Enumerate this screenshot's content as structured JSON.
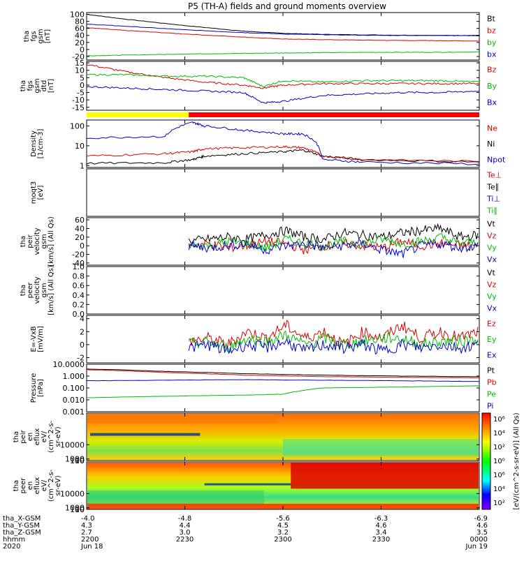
{
  "title": "P5 (TH-A) fields and ground moments overview",
  "chart_data": [
    {
      "type": "line",
      "panel": "fgs_gsm",
      "ylabel_lines": [
        "tha",
        "fgs",
        "gsm",
        "[nT]"
      ],
      "yticks": [
        "100",
        "80",
        "60",
        "40",
        "20",
        "0",
        "-20"
      ],
      "ylim": [
        -30,
        105
      ],
      "legend": [
        {
          "label": "Bt",
          "color": "#000000"
        },
        {
          "label": "bz",
          "color": "#dd0000"
        },
        {
          "label": "by",
          "color": "#00bb00"
        },
        {
          "label": "bx",
          "color": "#0000cc"
        }
      ],
      "series": [
        {
          "name": "Bt",
          "color": "#000000",
          "x": [
            0,
            0.1,
            0.25,
            0.4,
            0.5,
            0.6,
            0.75,
            0.9,
            1.0
          ],
          "values": [
            100,
            86,
            68,
            52,
            46,
            43,
            41,
            40,
            40
          ]
        },
        {
          "name": "bz",
          "color": "#dd0000",
          "x": [
            0,
            0.1,
            0.25,
            0.4,
            0.5,
            0.6,
            0.75,
            0.9,
            1.0
          ],
          "values": [
            62,
            54,
            44,
            35,
            30,
            28,
            26,
            25,
            24
          ]
        },
        {
          "name": "by",
          "color": "#00bb00",
          "x": [
            0,
            0.1,
            0.25,
            0.4,
            0.5,
            0.6,
            0.75,
            0.9,
            1.0
          ],
          "values": [
            -18,
            -16,
            -13,
            -11,
            -10,
            -9,
            -8,
            -8,
            -7
          ]
        },
        {
          "name": "bx",
          "color": "#0000cc",
          "x": [
            0,
            0.1,
            0.25,
            0.4,
            0.5,
            0.6,
            0.75,
            0.9,
            1.0
          ],
          "values": [
            72,
            66,
            56,
            48,
            44,
            42,
            40,
            40,
            39
          ]
        }
      ]
    },
    {
      "type": "line",
      "panel": "fgs_gsm_detrended",
      "ylabel_lines": [
        "tha",
        "fgs",
        "gsm",
        "dtd",
        "[nT]"
      ],
      "yticks": [
        "15",
        "10",
        "5",
        "0",
        "-5",
        "-10",
        "-15"
      ],
      "ylim": [
        -17,
        16
      ],
      "legend": [
        {
          "label": "Bz",
          "color": "#dd0000"
        },
        {
          "label": "By",
          "color": "#00bb00"
        },
        {
          "label": "Bx",
          "color": "#0000cc"
        }
      ],
      "series": [
        {
          "name": "Bz",
          "color": "#dd0000",
          "x": [
            0,
            0.1,
            0.2,
            0.3,
            0.4,
            0.45,
            0.5,
            0.6,
            0.7,
            0.8,
            0.9,
            1.0
          ],
          "values": [
            14,
            9,
            5,
            2,
            0,
            -2,
            0,
            1,
            1,
            1,
            1,
            1
          ]
        },
        {
          "name": "By",
          "color": "#00bb00",
          "x": [
            0,
            0.1,
            0.2,
            0.3,
            0.4,
            0.45,
            0.5,
            0.6,
            0.7,
            0.8,
            0.9,
            1.0
          ],
          "values": [
            7,
            7,
            6,
            6,
            5,
            -1,
            3,
            2,
            3,
            3,
            3,
            2
          ]
        },
        {
          "name": "Bx",
          "color": "#0000cc",
          "x": [
            0,
            0.1,
            0.2,
            0.3,
            0.4,
            0.45,
            0.5,
            0.6,
            0.7,
            0.8,
            0.9,
            1.0
          ],
          "values": [
            -1,
            -2,
            -3,
            -4,
            -5,
            -12,
            -11,
            -7,
            -6,
            -5,
            -5,
            -4
          ]
        }
      ]
    },
    {
      "type": "line",
      "panel": "density",
      "ylabel_lines": [
        "Density",
        "[1/cm-3]"
      ],
      "yscale": "log",
      "yticks": [
        "100",
        "10",
        "1"
      ],
      "ylim": [
        0.8,
        200
      ],
      "legend": [
        {
          "label": "Ne",
          "color": "#dd0000"
        },
        {
          "label": "Ni",
          "color": "#000000"
        },
        {
          "label": "Npot",
          "color": "#0000cc"
        }
      ],
      "series": [
        {
          "name": "Ni",
          "color": "#000000",
          "x": [
            0,
            0.2,
            0.27,
            0.3,
            0.4,
            0.5,
            0.55,
            0.6,
            0.7,
            1.0
          ],
          "values": [
            1.3,
            1.4,
            2,
            3,
            4,
            5,
            6,
            3,
            2,
            1.5
          ]
        },
        {
          "name": "Ne",
          "color": "#dd0000",
          "x": [
            0,
            0.2,
            0.27,
            0.3,
            0.4,
            0.5,
            0.55,
            0.6,
            0.7,
            1.0
          ],
          "values": [
            3,
            4,
            5,
            7,
            8,
            9,
            8,
            3,
            2,
            1.6
          ]
        },
        {
          "name": "Npot",
          "color": "#0000cc",
          "x": [
            0,
            0.2,
            0.27,
            0.3,
            0.4,
            0.5,
            0.55,
            0.6,
            0.7,
            1.0
          ],
          "values": [
            25,
            30,
            150,
            100,
            60,
            40,
            40,
            2,
            1.5,
            1.2
          ]
        }
      ]
    },
    {
      "type": "line",
      "panel": "temperature",
      "ylabel_lines": [
        "moqt3",
        "[eV]"
      ],
      "yscale": "log",
      "legend": [
        {
          "label": "Te⊥",
          "color": "#dd0000"
        },
        {
          "label": "Te∥",
          "color": "#000000"
        },
        {
          "label": "Ti⊥",
          "color": "#0000cc"
        },
        {
          "label": "Ti∥",
          "color": "#00bb00"
        }
      ]
    },
    {
      "type": "line",
      "panel": "peir_velocity",
      "ylabel_lines": [
        "tha",
        "peir",
        "velocity",
        "gsm",
        "[km/s] (All Qs)"
      ],
      "yticks": [
        "60",
        "40",
        "20",
        "0",
        "-20",
        "-40"
      ],
      "ylim": [
        -45,
        65
      ],
      "legend": [
        {
          "label": "Vt",
          "color": "#000000"
        },
        {
          "label": "Vz",
          "color": "#dd0000"
        },
        {
          "label": "Vy",
          "color": "#00bb00"
        },
        {
          "label": "Vx",
          "color": "#0000cc"
        }
      ],
      "series": [
        {
          "name": "Vt",
          "color": "#000000",
          "x_start": 0.26,
          "values": [
            10,
            15,
            20,
            15,
            25,
            35,
            20,
            15,
            30,
            25,
            20,
            30,
            35,
            40,
            20,
            25
          ]
        },
        {
          "name": "Vz",
          "color": "#dd0000",
          "x_start": 0.26,
          "values": [
            0,
            5,
            -5,
            0,
            10,
            5,
            -10,
            0,
            5,
            0,
            -5,
            10,
            0,
            5,
            0,
            0
          ]
        },
        {
          "name": "Vy",
          "color": "#00bb00",
          "x_start": 0.26,
          "values": [
            5,
            0,
            10,
            5,
            -5,
            15,
            5,
            0,
            10,
            5,
            15,
            5,
            10,
            20,
            5,
            10
          ]
        },
        {
          "name": "Vx",
          "color": "#0000cc",
          "x_start": 0.26,
          "values": [
            0,
            -5,
            0,
            5,
            -10,
            0,
            5,
            -5,
            0,
            5,
            -10,
            -20,
            0,
            5,
            -5,
            0
          ]
        }
      ]
    },
    {
      "type": "line",
      "panel": "peer_velocity",
      "ylabel_lines": [
        "tha",
        "peer",
        "velocity",
        "gsm",
        "[km/s] (All Qs)"
      ],
      "yticks": [
        "1.0",
        "0.8",
        "0.6",
        "0.4",
        "0.2",
        "0.0"
      ],
      "ylim": [
        0,
        1
      ],
      "legend": [
        {
          "label": "Vt",
          "color": "#000000"
        },
        {
          "label": "Vz",
          "color": "#dd0000"
        },
        {
          "label": "Vy",
          "color": "#00bb00"
        },
        {
          "label": "Vx",
          "color": "#0000cc"
        }
      ]
    },
    {
      "type": "line",
      "panel": "efield",
      "ylabel_lines": [
        "E=-VxB",
        "[mV/m]"
      ],
      "yticks": [
        "4",
        "2",
        "0",
        "-2"
      ],
      "ylim": [
        -2.8,
        4.5
      ],
      "legend": [
        {
          "label": "Ez",
          "color": "#dd0000"
        },
        {
          "label": "Ey",
          "color": "#00bb00"
        },
        {
          "label": "Ex",
          "color": "#0000cc"
        }
      ],
      "series": [
        {
          "name": "Ez",
          "color": "#dd0000",
          "x_start": 0.26,
          "values": [
            0.5,
            1,
            0,
            2,
            1,
            3,
            1,
            2,
            0,
            2,
            1,
            3,
            1,
            2,
            1,
            2
          ]
        },
        {
          "name": "Ey",
          "color": "#00bb00",
          "x_start": 0.26,
          "values": [
            0,
            0.5,
            -0.5,
            1,
            0.5,
            1.5,
            0,
            1,
            0,
            0.5,
            1,
            1,
            0,
            0.5,
            0.5,
            1
          ]
        },
        {
          "name": "Ex",
          "color": "#0000cc",
          "x_start": 0.26,
          "values": [
            -0.5,
            0,
            -1,
            0,
            -0.5,
            0.5,
            -1,
            0,
            -0.5,
            0,
            -1,
            0,
            -0.5,
            0,
            -0.5,
            0
          ]
        }
      ]
    },
    {
      "type": "line",
      "panel": "pressure",
      "ylabel_lines": [
        "Pressure",
        "[nPa]"
      ],
      "yscale": "log",
      "yticks": [
        "10.0000",
        "1.000",
        "0.100",
        "0.010",
        "0.001"
      ],
      "ylim": [
        0.001,
        10
      ],
      "legend": [
        {
          "label": "Pt",
          "color": "#000000"
        },
        {
          "label": "Pb",
          "color": "#dd0000"
        },
        {
          "label": "Pe",
          "color": "#00bb00"
        },
        {
          "label": "Pi",
          "color": "#0000cc"
        }
      ],
      "series": [
        {
          "name": "Pt",
          "color": "#000000",
          "x": [
            0,
            0.2,
            0.4,
            0.6,
            0.8,
            1.0
          ],
          "values": [
            4,
            2.5,
            1.6,
            1.2,
            1.0,
            0.9
          ]
        },
        {
          "name": "Pb",
          "color": "#dd0000",
          "x": [
            0,
            0.2,
            0.4,
            0.6,
            0.8,
            1.0
          ],
          "values": [
            3.5,
            2.0,
            1.2,
            0.9,
            0.8,
            0.7
          ]
        },
        {
          "name": "Pi",
          "color": "#0000cc",
          "x": [
            0,
            0.2,
            0.4,
            0.6,
            0.8,
            1.0
          ],
          "values": [
            0.4,
            0.45,
            0.5,
            0.45,
            0.4,
            0.35
          ]
        },
        {
          "name": "Pe",
          "color": "#00bb00",
          "x": [
            0,
            0.2,
            0.4,
            0.5,
            0.55,
            0.6,
            0.8,
            1.0
          ],
          "values": [
            0.015,
            0.02,
            0.025,
            0.03,
            0.06,
            0.1,
            0.12,
            0.15
          ]
        }
      ]
    },
    {
      "type": "heatmap",
      "panel": "peir_en_eflux",
      "ylabel_lines": [
        "tha",
        "peir",
        "en",
        "eflux",
        "eV/",
        "(cm^2-s-",
        "sr-eV)"
      ],
      "yticks": [
        "10000",
        "1000",
        "100",
        "10"
      ],
      "ylim": [
        5,
        30000
      ]
    },
    {
      "type": "heatmap",
      "panel": "peer_en_eflux",
      "ylabel_lines": [
        "tha",
        "peer",
        "en",
        "eflux",
        "eV/",
        "(cm^2-s-",
        "sr-eV)"
      ],
      "yticks": [
        "10000",
        "1000",
        "100",
        "10"
      ],
      "ylim": [
        5,
        30000
      ]
    }
  ],
  "colorbar": {
    "label": "[eV/(cm^2-s-sr-eV)] (All Qs)",
    "ticks": [
      "10⁶",
      "10⁴",
      "10²",
      "10⁰",
      "10⁶",
      "10⁴",
      "10²"
    ],
    "colors": [
      "#ff0000",
      "#ff8000",
      "#ffff00",
      "#00ff00",
      "#00ffff",
      "#0000ff",
      "#8000ff"
    ]
  },
  "time_axis": {
    "row_labels": [
      "tha_X-GSM",
      "tha_Y-GSM",
      "tha_Z-GSM",
      "hhmm",
      "2020"
    ],
    "columns": [
      {
        "x": -4.0,
        "y": 4.3,
        "z": 2.7,
        "hhmm": "2200",
        "date": "Jun 18"
      },
      {
        "x": -4.8,
        "y": 4.4,
        "z": 3.0,
        "hhmm": "2230",
        "date": ""
      },
      {
        "x": -5.6,
        "y": 4.5,
        "z": 3.2,
        "hhmm": "2300",
        "date": ""
      },
      {
        "x": -6.3,
        "y": 4.6,
        "z": 3.4,
        "hhmm": "2330",
        "date": ""
      },
      {
        "x": -6.9,
        "y": 4.6,
        "z": 3.5,
        "hhmm": "0000",
        "date": "Jun 19"
      }
    ]
  },
  "bar": {
    "segments": [
      {
        "from": 0,
        "to": 0.26,
        "color": "#ffff00"
      },
      {
        "from": 0.26,
        "to": 1.0,
        "color": "#ff0000"
      }
    ]
  }
}
